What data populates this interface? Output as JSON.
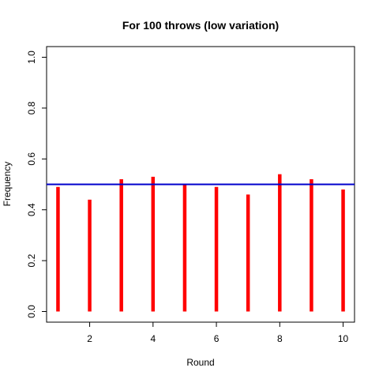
{
  "chart_data": {
    "type": "bar",
    "title": "For 100 throws (low variation)",
    "xlabel": "Round",
    "ylabel": "Frequency",
    "x": [
      1,
      2,
      3,
      4,
      5,
      6,
      7,
      8,
      9,
      10
    ],
    "values": [
      0.49,
      0.44,
      0.52,
      0.53,
      0.5,
      0.49,
      0.46,
      0.54,
      0.52,
      0.48
    ],
    "xlim": [
      0.64,
      10.36
    ],
    "ylim": [
      0,
      1
    ],
    "x_ticks": [
      2,
      4,
      6,
      8,
      10
    ],
    "y_ticks": [
      0.0,
      0.2,
      0.4,
      0.6,
      0.8,
      1.0
    ],
    "x_tick_labels": [
      "2",
      "4",
      "6",
      "8",
      "10"
    ],
    "y_tick_labels": [
      "0.0",
      "0.2",
      "0.4",
      "0.6",
      "0.8",
      "1.0"
    ],
    "reference_line": {
      "y": 0.5,
      "color": "#0000cc"
    },
    "bar_color": "#ff0000",
    "grid": false,
    "legend": "none"
  }
}
